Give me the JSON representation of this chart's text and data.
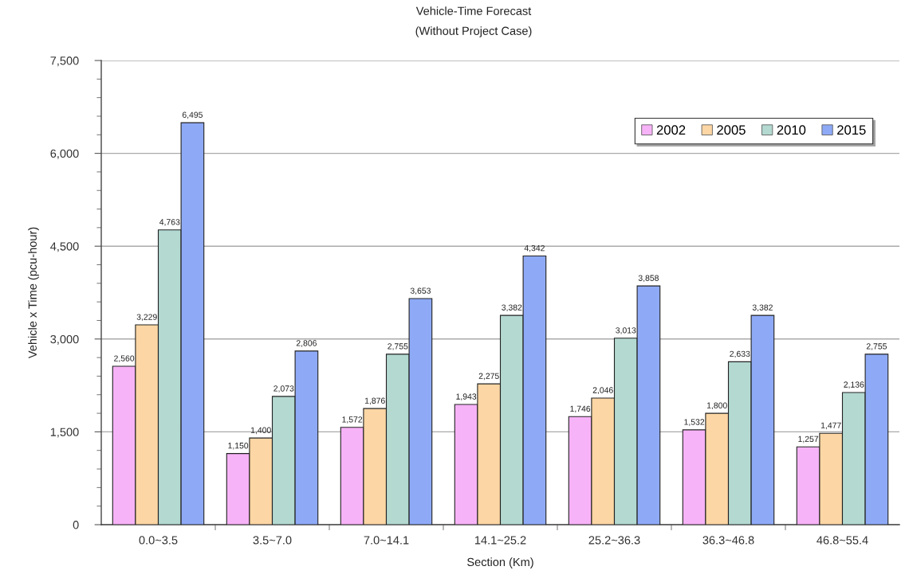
{
  "chart_data": {
    "type": "bar",
    "title": "Vehicle-Time Forecast",
    "subtitle": "(Without Project Case)",
    "xlabel": "Section (Km)",
    "ylabel": "Vehicle x Time (pcu-hour)",
    "categories": [
      "0.0~3.5",
      "3.5~7.0",
      "7.0~14.1",
      "14.1~25.2",
      "25.2~36.3",
      "36.3~46.8",
      "46.8~55.4"
    ],
    "series": [
      {
        "name": "2002",
        "color": "#f7b3f7",
        "values": [
          2560,
          1150,
          1572,
          1943,
          1746,
          1532,
          1257
        ],
        "value_labels": [
          "2,560",
          "1,150",
          "1,572",
          "1,943",
          "1,746",
          "1,532",
          "1,257"
        ]
      },
      {
        "name": "2005",
        "color": "#fcd6a4",
        "values": [
          3229,
          1400,
          1876,
          2275,
          2046,
          1800,
          1477
        ],
        "value_labels": [
          "3,229",
          "1,400",
          "1,876",
          "2,275",
          "2,046",
          "1,800",
          "1,477"
        ]
      },
      {
        "name": "2010",
        "color": "#b3d9d1",
        "values": [
          4763,
          2073,
          2755,
          3382,
          3013,
          2633,
          2136
        ],
        "value_labels": [
          "4,763",
          "2,073",
          "2,755",
          "3,382",
          "3,013",
          "2,633",
          "2,136"
        ]
      },
      {
        "name": "2015",
        "color": "#8eaaf7",
        "values": [
          6495,
          2806,
          3653,
          4342,
          3858,
          3382,
          2755
        ],
        "value_labels": [
          "6,495",
          "2,806",
          "3,653",
          "4,342",
          "3,858",
          "3,382",
          "2,755"
        ]
      }
    ],
    "ylim": [
      0,
      7500
    ],
    "yticks": [
      0,
      {
        "value": 300,
        "label": null
      },
      {
        "value": 600,
        "label": null
      },
      {
        "value": 900,
        "label": null
      },
      {
        "value": 1200,
        "label": null
      },
      {
        "value": 1500,
        "label": "1,500"
      },
      {
        "value": 1800,
        "label": null
      },
      {
        "value": 2100,
        "label": null
      },
      {
        "value": 2400,
        "label": null
      },
      {
        "value": 2700,
        "label": null
      },
      {
        "value": 3000,
        "label": "3,000"
      },
      {
        "value": 3300,
        "label": null
      },
      {
        "value": 3600,
        "label": null
      },
      {
        "value": 3900,
        "label": null
      },
      {
        "value": 4200,
        "label": null
      },
      {
        "value": 4500,
        "label": "4,500"
      },
      {
        "value": 4800,
        "label": null
      },
      {
        "value": 5100,
        "label": null
      },
      {
        "value": 5400,
        "label": null
      },
      {
        "value": 5700,
        "label": null
      },
      {
        "value": 6000,
        "label": "6,000"
      },
      {
        "value": 6300,
        "label": null
      },
      {
        "value": 6600,
        "label": null
      },
      {
        "value": 6900,
        "label": null
      },
      {
        "value": 7200,
        "label": null
      },
      {
        "value": 7500,
        "label": "7,500"
      }
    ],
    "grid": "y",
    "legend": "top right"
  }
}
